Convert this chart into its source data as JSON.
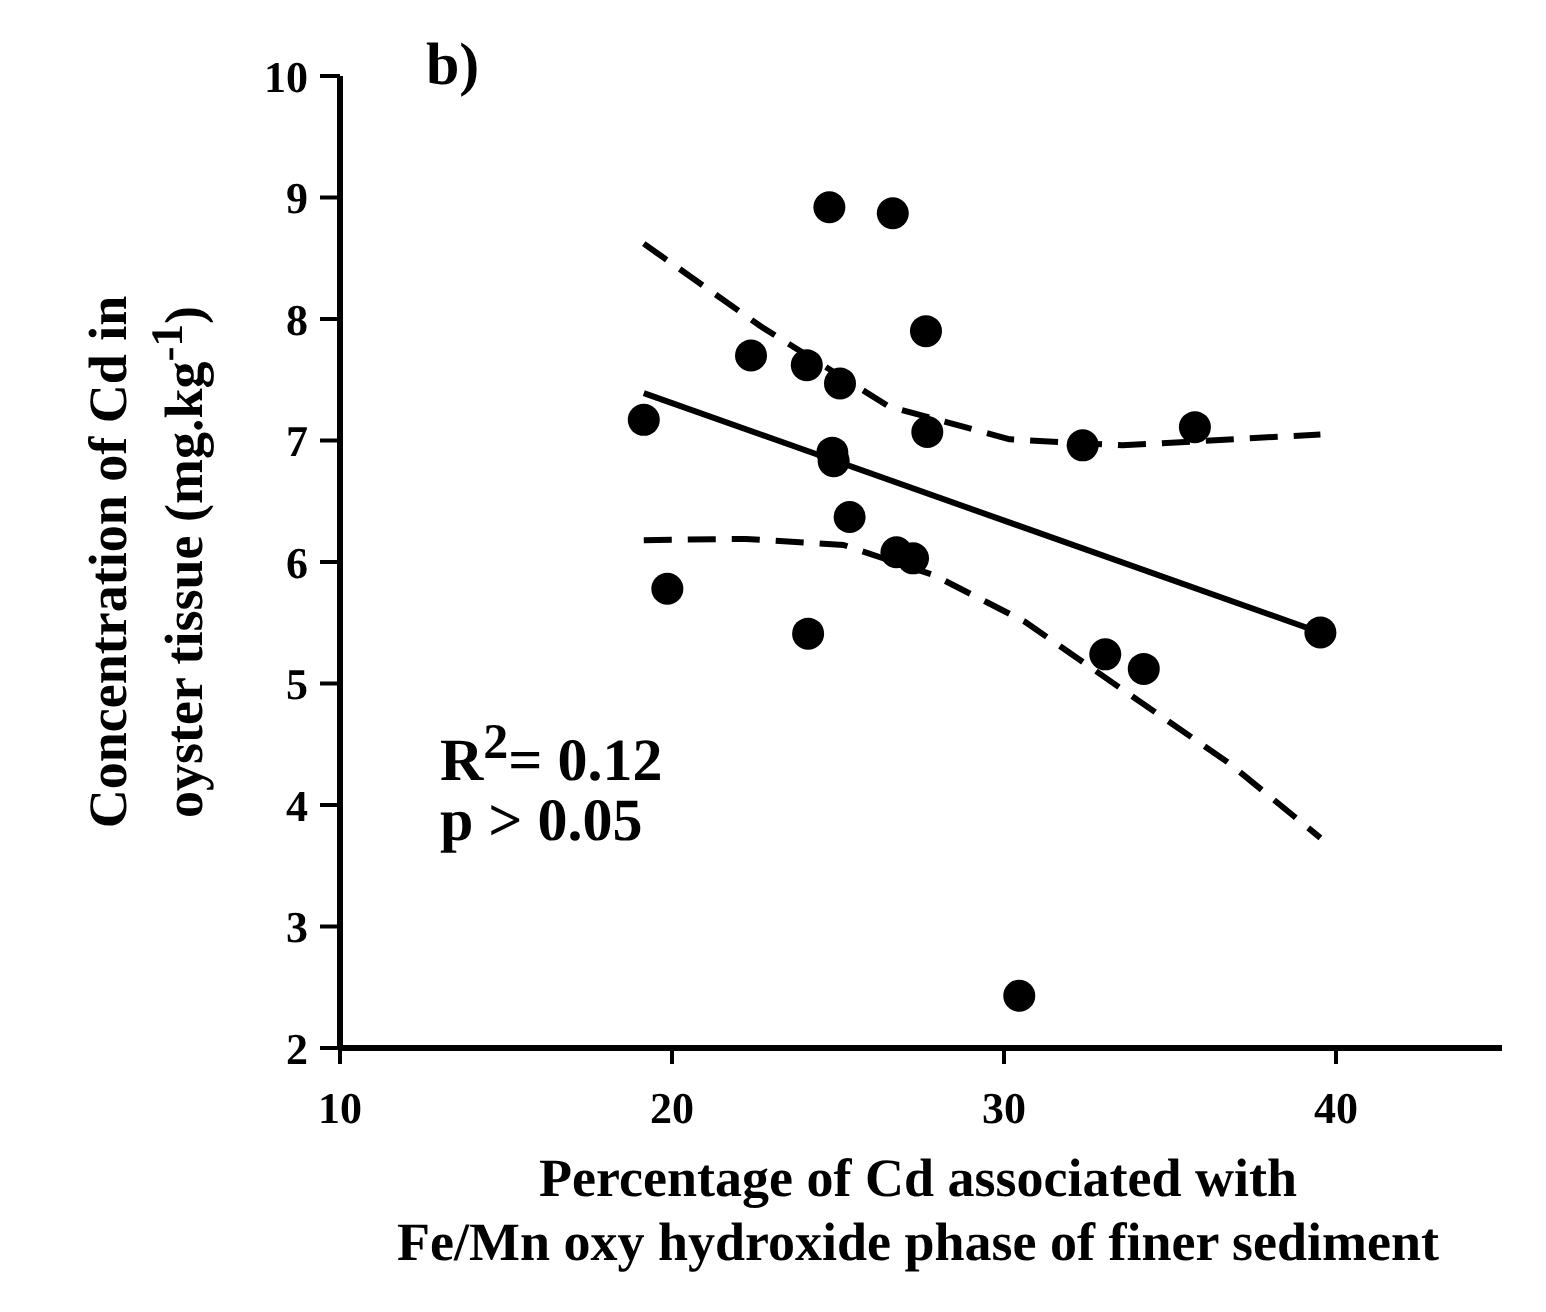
{
  "chart_data": {
    "type": "scatter",
    "xlabel": "Percentage of Cd associated with\nFe/Mn oxy hydroxide phase of finer sediment",
    "ylabel": "Concentration of Cd in\noyster tissue (mg.kg$^{-1}$)",
    "annotations": [
      "b)",
      "R$^{2}$= 0.12",
      "p > 0.05"
    ],
    "xlim": [
      10,
      45
    ],
    "ylim": [
      2,
      10
    ],
    "xticks": [
      10,
      20,
      30,
      40
    ],
    "yticks": [
      2,
      3,
      4,
      5,
      6,
      7,
      8,
      9,
      10
    ],
    "grid": false,
    "series": [
      {
        "marker": "circle",
        "color": "#000000",
        "x": [
          19.15,
          19.86,
          22.38,
          24.06,
          24.1,
          24.74,
          25.06,
          24.83,
          24.87,
          25.35,
          26.65,
          26.76,
          27.26,
          27.65,
          27.69,
          30.46,
          32.37,
          33.05,
          34.21,
          35.75,
          39.53
        ],
        "values": [
          7.17,
          5.78,
          7.7,
          7.62,
          5.41,
          8.92,
          7.47,
          6.9,
          6.83,
          6.37,
          8.87,
          6.08,
          6.03,
          7.9,
          7.07,
          2.43,
          6.96,
          5.24,
          5.12,
          7.11,
          5.42
        ]
      },
      {
        "type": "line",
        "marker": "none",
        "line_style": "solid",
        "color": "#000000",
        "x": [
          19.15,
          39.53
        ],
        "values": [
          7.39,
          5.42
        ]
      },
      {
        "type": "line",
        "marker": "none",
        "line_style": "dashed",
        "color": "#000000",
        "x": [
          19.15,
          22.67,
          26.53,
          30.17,
          33.57,
          39.53
        ],
        "values": [
          8.62,
          7.94,
          7.28,
          7.01,
          6.96,
          7.05
        ]
      },
      {
        "type": "line",
        "marker": "none",
        "line_style": "dashed",
        "color": "#000000",
        "x": [
          19.15,
          22.22,
          25.17,
          27.9,
          30.62,
          33.57,
          36.75,
          39.53
        ],
        "values": [
          6.18,
          6.19,
          6.14,
          5.89,
          5.51,
          4.95,
          4.35,
          3.73
        ]
      }
    ]
  }
}
